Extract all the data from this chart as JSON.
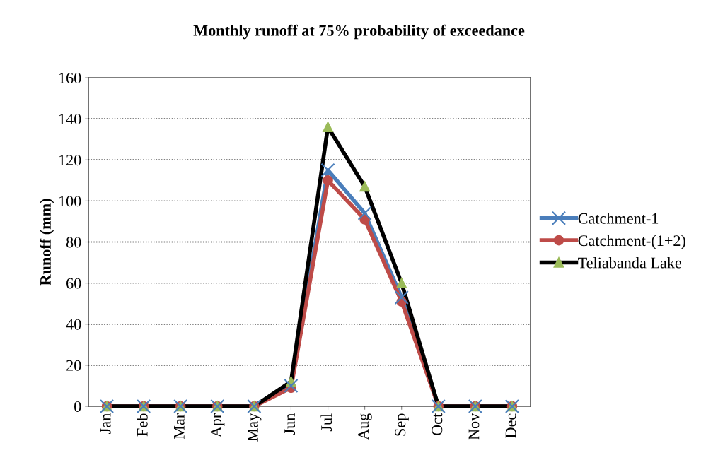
{
  "chart_data": {
    "type": "line",
    "title": "Monthly runoff at 75% probability of exceedance",
    "ylabel": "Runoff (mm)",
    "categories": [
      "Jan",
      "Feb",
      "Mar",
      "Apr",
      "May",
      "Jun",
      "Jul",
      "Aug",
      "Sep",
      "Oct",
      "Nov",
      "Dec"
    ],
    "series": [
      {
        "name": "Catchment-1",
        "color": "#4a7ebb",
        "marker": "cross",
        "values": [
          0,
          0,
          0,
          0,
          0,
          10,
          115,
          94,
          53,
          0,
          0,
          0
        ]
      },
      {
        "name": "Catchment-(1+2)",
        "color": "#be4b48",
        "marker": "circle",
        "values": [
          0,
          0,
          0,
          0,
          0,
          9,
          110,
          91,
          51,
          0,
          0,
          0
        ]
      },
      {
        "name": "Teliabanda Lake",
        "color": "#000000",
        "marker": "triangle",
        "colors": [
          "#9bbb59",
          "#9bbb59",
          "#9bbb59",
          "#9bbb59",
          "#9bbb59",
          "#9bbb59",
          "#9bbb59",
          "#9bbb59",
          "#9bbb59",
          "#9bbb59",
          "#9bbb59",
          "#9bbb59"
        ],
        "values": [
          0,
          0,
          0,
          0,
          0,
          12,
          136,
          107,
          60,
          0,
          0,
          0
        ]
      }
    ],
    "ylim": [
      0,
      160
    ],
    "yticks": [
      0,
      20,
      40,
      60,
      80,
      100,
      120,
      140,
      160
    ],
    "grid": "y",
    "legend": "right",
    "line_style": "solid"
  }
}
